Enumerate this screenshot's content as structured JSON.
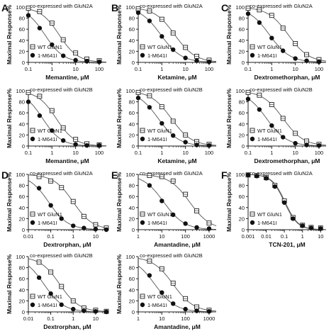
{
  "figure": {
    "ylabel": "Maximal Response%",
    "legend_wt": "WT GluN1",
    "legend_mut": "1-M641I"
  },
  "chart_data": [
    {
      "panel": "A",
      "row": 0,
      "col": 0,
      "type": "scatter",
      "annotation": "co-expressed with GluN2A",
      "xlabel": "Memantine, μM",
      "xscale": "log",
      "xlim": [
        0.1,
        200
      ],
      "xticks": [
        "0.1",
        "1",
        "10",
        "100"
      ],
      "ylim": [
        0,
        100
      ],
      "yticks": [
        "0",
        "20",
        "40",
        "60",
        "80",
        "100"
      ],
      "series": [
        {
          "name": "WT GluN1",
          "marker": "open-square",
          "ic50": 2.0,
          "hill": 1.1,
          "x": [
            0.1,
            0.3,
            1,
            3,
            10,
            30,
            100
          ],
          "y": [
            98,
            92,
            71,
            41,
            17,
            6,
            3
          ]
        },
        {
          "name": "1-M641I",
          "marker": "filled-circle",
          "ic50": 0.5,
          "hill": 1.1,
          "x": [
            0.1,
            0.3,
            1,
            3,
            10,
            30,
            100
          ],
          "y": [
            85,
            62,
            32,
            12,
            4,
            2,
            1
          ]
        }
      ]
    },
    {
      "panel": "B",
      "row": 0,
      "col": 1,
      "type": "scatter",
      "annotation": "co-expressed with GluN2A",
      "xlabel": "Ketamine, μM",
      "xscale": "log",
      "xlim": [
        0.1,
        200
      ],
      "xticks": [
        "0.1",
        "1",
        "10",
        "100"
      ],
      "ylim": [
        0,
        100
      ],
      "yticks": [
        "0",
        "20",
        "40",
        "60",
        "80",
        "100"
      ],
      "series": [
        {
          "name": "WT GluN1",
          "marker": "open-square",
          "ic50": 3.5,
          "hill": 1.0,
          "x": [
            0.1,
            0.3,
            1,
            3,
            10,
            30,
            100
          ],
          "y": [
            97,
            93,
            78,
            53,
            27,
            11,
            4
          ]
        },
        {
          "name": "1-M641I",
          "marker": "filled-circle",
          "ic50": 0.9,
          "hill": 1.0,
          "x": [
            0.1,
            0.3,
            1,
            3,
            10,
            30,
            100
          ],
          "y": [
            90,
            75,
            47,
            23,
            8,
            3,
            1
          ]
        }
      ]
    },
    {
      "panel": "C",
      "row": 0,
      "col": 2,
      "type": "scatter",
      "annotation": "co-expressed with GluN2A",
      "xlabel": "Dextromethorphan, μM",
      "xscale": "log",
      "xlim": [
        0.1,
        200
      ],
      "xticks": [
        "0.1",
        "1",
        "10",
        "100"
      ],
      "ylim": [
        0,
        100
      ],
      "yticks": [
        "0",
        "20",
        "40",
        "60",
        "80",
        "100"
      ],
      "series": [
        {
          "name": "WT GluN1",
          "marker": "open-square",
          "ic50": 5.0,
          "hill": 1.0,
          "x": [
            0.1,
            0.3,
            1,
            3,
            10,
            30,
            100
          ],
          "y": [
            98,
            95,
            85,
            62,
            34,
            14,
            5
          ]
        },
        {
          "name": "1-M641I",
          "marker": "filled-circle",
          "ic50": 0.8,
          "hill": 1.0,
          "x": [
            0.1,
            0.3,
            1,
            3,
            10,
            30,
            100
          ],
          "y": [
            88,
            72,
            44,
            21,
            7,
            3,
            1
          ]
        }
      ]
    },
    {
      "panel": "",
      "row": 1,
      "col": 0,
      "type": "scatter",
      "annotation": "co-expressed with GluN2B",
      "xlabel": "Memantine, μM",
      "xscale": "log",
      "xlim": [
        0.1,
        200
      ],
      "xticks": [
        "0.1",
        "1",
        "10",
        "100"
      ],
      "ylim": [
        0,
        100
      ],
      "yticks": [
        "0",
        "20",
        "40",
        "60",
        "80",
        "100"
      ],
      "series": [
        {
          "name": "WT GluN1",
          "marker": "open-square",
          "ic50": 1.5,
          "hill": 1.1,
          "x": [
            0.1,
            0.3,
            1,
            3,
            10,
            30,
            100
          ],
          "y": [
            97,
            90,
            64,
            33,
            12,
            4,
            2
          ]
        },
        {
          "name": "1-M641I",
          "marker": "filled-circle",
          "ic50": 0.4,
          "hill": 1.1,
          "x": [
            0.1,
            0.3,
            1,
            3,
            10,
            30,
            100
          ],
          "y": [
            80,
            55,
            28,
            10,
            3,
            1,
            1
          ]
        }
      ]
    },
    {
      "panel": "",
      "row": 1,
      "col": 1,
      "type": "scatter",
      "annotation": "co-expressed with GluN2B",
      "xlabel": "Ketamine, μM",
      "xscale": "log",
      "xlim": [
        0.1,
        200
      ],
      "xticks": [
        "0.1",
        "1",
        "10",
        "100"
      ],
      "ylim": [
        0,
        100
      ],
      "yticks": [
        "0",
        "20",
        "40",
        "60",
        "80",
        "100"
      ],
      "series": [
        {
          "name": "WT GluN1",
          "marker": "open-square",
          "ic50": 2.5,
          "hill": 1.0,
          "x": [
            0.1,
            0.3,
            1,
            3,
            10,
            30,
            100
          ],
          "y": [
            97,
            91,
            71,
            45,
            20,
            8,
            3
          ]
        },
        {
          "name": "1-M641I",
          "marker": "filled-circle",
          "ic50": 0.7,
          "hill": 1.0,
          "x": [
            0.1,
            0.3,
            1,
            3,
            10,
            30,
            100
          ],
          "y": [
            87,
            70,
            41,
            19,
            7,
            2,
            1
          ]
        }
      ]
    },
    {
      "panel": "",
      "row": 1,
      "col": 2,
      "type": "scatter",
      "annotation": "co-expressed with GluN2B",
      "xlabel": "Dextromethorphan, μM",
      "xscale": "log",
      "xlim": [
        0.1,
        200
      ],
      "xticks": [
        "0.1",
        "1",
        "10",
        "100"
      ],
      "ylim": [
        0,
        100
      ],
      "yticks": [
        "0",
        "20",
        "40",
        "60",
        "80",
        "100"
      ],
      "series": [
        {
          "name": "WT GluN1",
          "marker": "open-square",
          "ic50": 3.0,
          "hill": 1.0,
          "x": [
            0.1,
            0.3,
            1,
            3,
            10,
            30,
            100
          ],
          "y": [
            97,
            92,
            75,
            50,
            23,
            9,
            3
          ]
        },
        {
          "name": "1-M641I",
          "marker": "filled-circle",
          "ic50": 0.6,
          "hill": 1.0,
          "x": [
            0.1,
            0.3,
            1,
            3,
            10,
            30,
            100
          ],
          "y": [
            85,
            66,
            37,
            16,
            5,
            2,
            1
          ]
        }
      ]
    },
    {
      "panel": "D",
      "row": 2,
      "col": 0,
      "type": "scatter",
      "annotation": "co-expressed with GluN2A",
      "xlabel": "Dextrorphan, μM",
      "xscale": "log",
      "xlim": [
        0.01,
        30
      ],
      "xticks": [
        "0.01",
        "0.1",
        "1",
        "10"
      ],
      "ylim": [
        0,
        100
      ],
      "yticks": [
        "0",
        "20",
        "40",
        "60",
        "80",
        "100"
      ],
      "series": [
        {
          "name": "WT GluN1",
          "marker": "open-square",
          "ic50": 1.0,
          "hill": 1.0,
          "x": [
            0.03,
            0.1,
            0.3,
            1,
            3,
            10,
            30
          ],
          "y": [
            96,
            88,
            76,
            51,
            24,
            9,
            3
          ]
        },
        {
          "name": "1-M641I",
          "marker": "filled-circle",
          "ic50": 0.08,
          "hill": 1.0,
          "x": [
            0.03,
            0.1,
            0.3,
            1,
            3,
            10,
            30
          ],
          "y": [
            75,
            44,
            20,
            7,
            3,
            1,
            0
          ]
        }
      ]
    },
    {
      "panel": "E",
      "row": 2,
      "col": 1,
      "type": "scatter",
      "annotation": "co-expressed with GluN2A",
      "xlabel": "Amantadine, μM",
      "xscale": "log",
      "xlim": [
        1,
        2000
      ],
      "xticks": [
        "1",
        "10",
        "100",
        "1000"
      ],
      "ylim": [
        0,
        100
      ],
      "yticks": [
        "0",
        "20",
        "40",
        "60",
        "80",
        "100"
      ],
      "series": [
        {
          "name": "WT GluN1",
          "marker": "open-square",
          "ic50": 150,
          "hill": 1.0,
          "x": [
            3,
            10,
            30,
            100,
            300,
            1000
          ],
          "y": [
            98,
            96,
            88,
            64,
            34,
            12
          ]
        },
        {
          "name": "1-M641I",
          "marker": "filled-circle",
          "ic50": 12,
          "hill": 1.0,
          "x": [
            3,
            10,
            30,
            100,
            300,
            1000
          ],
          "y": [
            80,
            52,
            27,
            11,
            4,
            2
          ]
        }
      ]
    },
    {
      "panel": "F",
      "row": 2,
      "col": 2,
      "type": "scatter",
      "annotation": "co-expressed with GluN2A",
      "xlabel": "TCN-201, μM",
      "xscale": "log",
      "xlim": [
        0.001,
        20
      ],
      "xticks": [
        "0.001",
        "0.01",
        "0.1",
        "1",
        "10"
      ],
      "ylim": [
        0,
        100
      ],
      "yticks": [
        "0",
        "20",
        "40",
        "60",
        "80",
        "100"
      ],
      "series": [
        {
          "name": "WT GluN1",
          "marker": "open-square",
          "ic50": 0.11,
          "hill": 1.2,
          "x": [
            0.001,
            0.003,
            0.01,
            0.03,
            0.1,
            0.3,
            1,
            3,
            10
          ],
          "y": [
            99,
            98,
            94,
            80,
            52,
            22,
            8,
            4,
            3
          ]
        },
        {
          "name": "1-M641I",
          "marker": "filled-circle",
          "ic50": 0.1,
          "hill": 1.2,
          "x": [
            0.001,
            0.003,
            0.01,
            0.03,
            0.1,
            0.3,
            1,
            3,
            10
          ],
          "y": [
            99,
            97,
            93,
            78,
            49,
            20,
            7,
            3,
            2
          ]
        }
      ]
    },
    {
      "panel": "",
      "row": 3,
      "col": 0,
      "type": "scatter",
      "annotation": "co-expressed with GluN2B",
      "xlabel": "Dextrorphan, μM",
      "xscale": "log",
      "xlim": [
        0.01,
        30
      ],
      "xticks": [
        "0.01",
        "0.1",
        "1",
        "10"
      ],
      "ylim": [
        0,
        100
      ],
      "yticks": [
        "0",
        "20",
        "40",
        "60",
        "80",
        "100"
      ],
      "series": [
        {
          "name": "WT GluN1",
          "marker": "open-square",
          "ic50": 0.25,
          "hill": 1.0,
          "x": [
            0.03,
            0.1,
            0.3,
            1,
            3,
            10,
            30
          ],
          "y": [
            90,
            72,
            46,
            20,
            7,
            3,
            1
          ]
        },
        {
          "name": "1-M641I",
          "marker": "filled-circle",
          "ic50": 0.05,
          "hill": 1.0,
          "x": [
            0.03,
            0.1,
            0.3,
            1,
            3,
            10,
            30
          ],
          "y": [
            62,
            33,
            13,
            5,
            2,
            1,
            0
          ]
        }
      ]
    },
    {
      "panel": "",
      "row": 3,
      "col": 1,
      "type": "scatter",
      "annotation": "co-expressed with GluN2B",
      "xlabel": "Amantadine, μM",
      "xscale": "log",
      "xlim": [
        1,
        2000
      ],
      "xticks": [
        "1",
        "10",
        "100",
        "1000"
      ],
      "ylim": [
        0,
        100
      ],
      "yticks": [
        "0",
        "20",
        "40",
        "60",
        "80",
        "100"
      ],
      "series": [
        {
          "name": "WT GluN1",
          "marker": "open-square",
          "ic50": 30,
          "hill": 1.0,
          "x": [
            3,
            10,
            30,
            100,
            300,
            1000
          ],
          "y": [
            92,
            78,
            52,
            24,
            9,
            3
          ]
        },
        {
          "name": "1-M641I",
          "marker": "filled-circle",
          "ic50": 5,
          "hill": 1.0,
          "x": [
            3,
            10,
            30,
            100,
            300,
            1000
          ],
          "y": [
            66,
            35,
            15,
            5,
            2,
            1
          ]
        }
      ]
    }
  ]
}
